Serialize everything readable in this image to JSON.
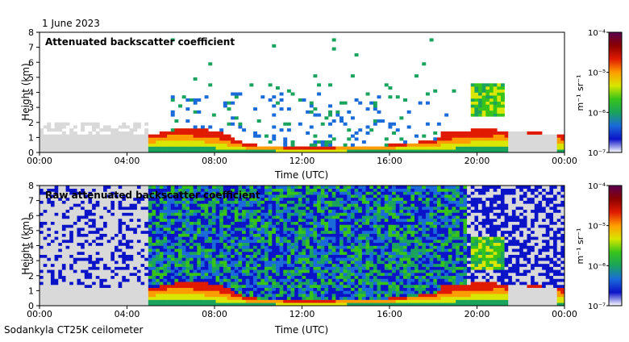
{
  "date": "1 June 2023",
  "footer": "Sodankyla CT25K ceilometer",
  "colors": {
    "background_gray": "#d9d9d9",
    "colormap": [
      "#ffffff",
      "#0b13c8",
      "#1a6bd9",
      "#1aa35c",
      "#37c41a",
      "#d8e600",
      "#ff9d00",
      "#e01a00",
      "#8a0000",
      "#5a0050"
    ]
  },
  "chart_data": [
    {
      "type": "heatmap",
      "title": "Attenuated backscatter coefficient",
      "xlabel": "Time (UTC)",
      "ylabel": "Height (km)",
      "x_ticks": [
        "00:00",
        "04:00",
        "08:00",
        "12:00",
        "16:00",
        "20:00",
        "00:00"
      ],
      "y_ticks": [
        "0",
        "1",
        "2",
        "3",
        "4",
        "5",
        "6",
        "7",
        "8"
      ],
      "xlim_hours": [
        0,
        24
      ],
      "ylim_km": [
        0,
        8
      ],
      "colorbar": {
        "unit": "m⁻¹ sr⁻¹",
        "ticks": [
          "10⁻⁴",
          "10⁻⁵",
          "10⁻⁶",
          "10⁻⁷"
        ],
        "scale": "log",
        "range": [
          1e-07,
          0.0001
        ]
      },
      "layer_top_km": [
        [
          0,
          1.1
        ],
        [
          5,
          1.2
        ],
        [
          6.3,
          1.5
        ],
        [
          8,
          1.2
        ],
        [
          9.5,
          0.5
        ],
        [
          12,
          0.3
        ],
        [
          14,
          0.4
        ],
        [
          16,
          0.5
        ],
        [
          18,
          0.8
        ],
        [
          19,
          1.2
        ],
        [
          21,
          1.4
        ],
        [
          23.5,
          1.2
        ],
        [
          24,
          1.1
        ]
      ],
      "cloud_km": [
        [
          6.3,
          1.4
        ],
        [
          7.5,
          1.4
        ],
        [
          8.5,
          1.1
        ],
        [
          9.5,
          0.4
        ],
        [
          18.5,
          1.2
        ],
        [
          20.2,
          1.4
        ],
        [
          21.5,
          1.3
        ],
        [
          23.5,
          1.1
        ]
      ],
      "elevated_layers": [
        {
          "start_h": 19.7,
          "end_h": 21.3,
          "bottom_km": 2.4,
          "top_km": 4.5
        }
      ],
      "noise": false
    },
    {
      "type": "heatmap",
      "title": "Raw attenuated backscatter coefficient",
      "xlabel": "Time (UTC)",
      "ylabel": "Height (km)",
      "x_ticks": [
        "00:00",
        "04:00",
        "08:00",
        "12:00",
        "16:00",
        "20:00",
        "00:00"
      ],
      "y_ticks": [
        "0",
        "1",
        "2",
        "3",
        "4",
        "5",
        "6",
        "7",
        "8"
      ],
      "xlim_hours": [
        0,
        24
      ],
      "ylim_km": [
        0,
        8
      ],
      "colorbar": {
        "unit": "m⁻¹ sr⁻¹",
        "ticks": [
          "10⁻⁴",
          "10⁻⁵",
          "10⁻⁶",
          "10⁻⁷"
        ],
        "scale": "log",
        "range": [
          1e-07,
          0.0001
        ]
      },
      "layer_top_km": [
        [
          0,
          1.1
        ],
        [
          5,
          1.2
        ],
        [
          6.3,
          1.5
        ],
        [
          8,
          1.2
        ],
        [
          9.5,
          0.5
        ],
        [
          12,
          0.3
        ],
        [
          14,
          0.4
        ],
        [
          16,
          0.5
        ],
        [
          18,
          0.8
        ],
        [
          19,
          1.2
        ],
        [
          21,
          1.4
        ],
        [
          23.5,
          1.2
        ],
        [
          24,
          1.1
        ]
      ],
      "cloud_km": [
        [
          5.1,
          1.1
        ],
        [
          6.3,
          1.4
        ],
        [
          7.5,
          1.4
        ],
        [
          8.5,
          1.1
        ],
        [
          9.5,
          0.4
        ],
        [
          18.5,
          1.2
        ],
        [
          20.2,
          1.4
        ],
        [
          21.5,
          1.3
        ],
        [
          23.5,
          1.1
        ]
      ],
      "elevated_layers": [
        {
          "start_h": 19.7,
          "end_h": 21.3,
          "bottom_km": 2.4,
          "top_km": 4.5
        }
      ],
      "noise": true
    }
  ]
}
